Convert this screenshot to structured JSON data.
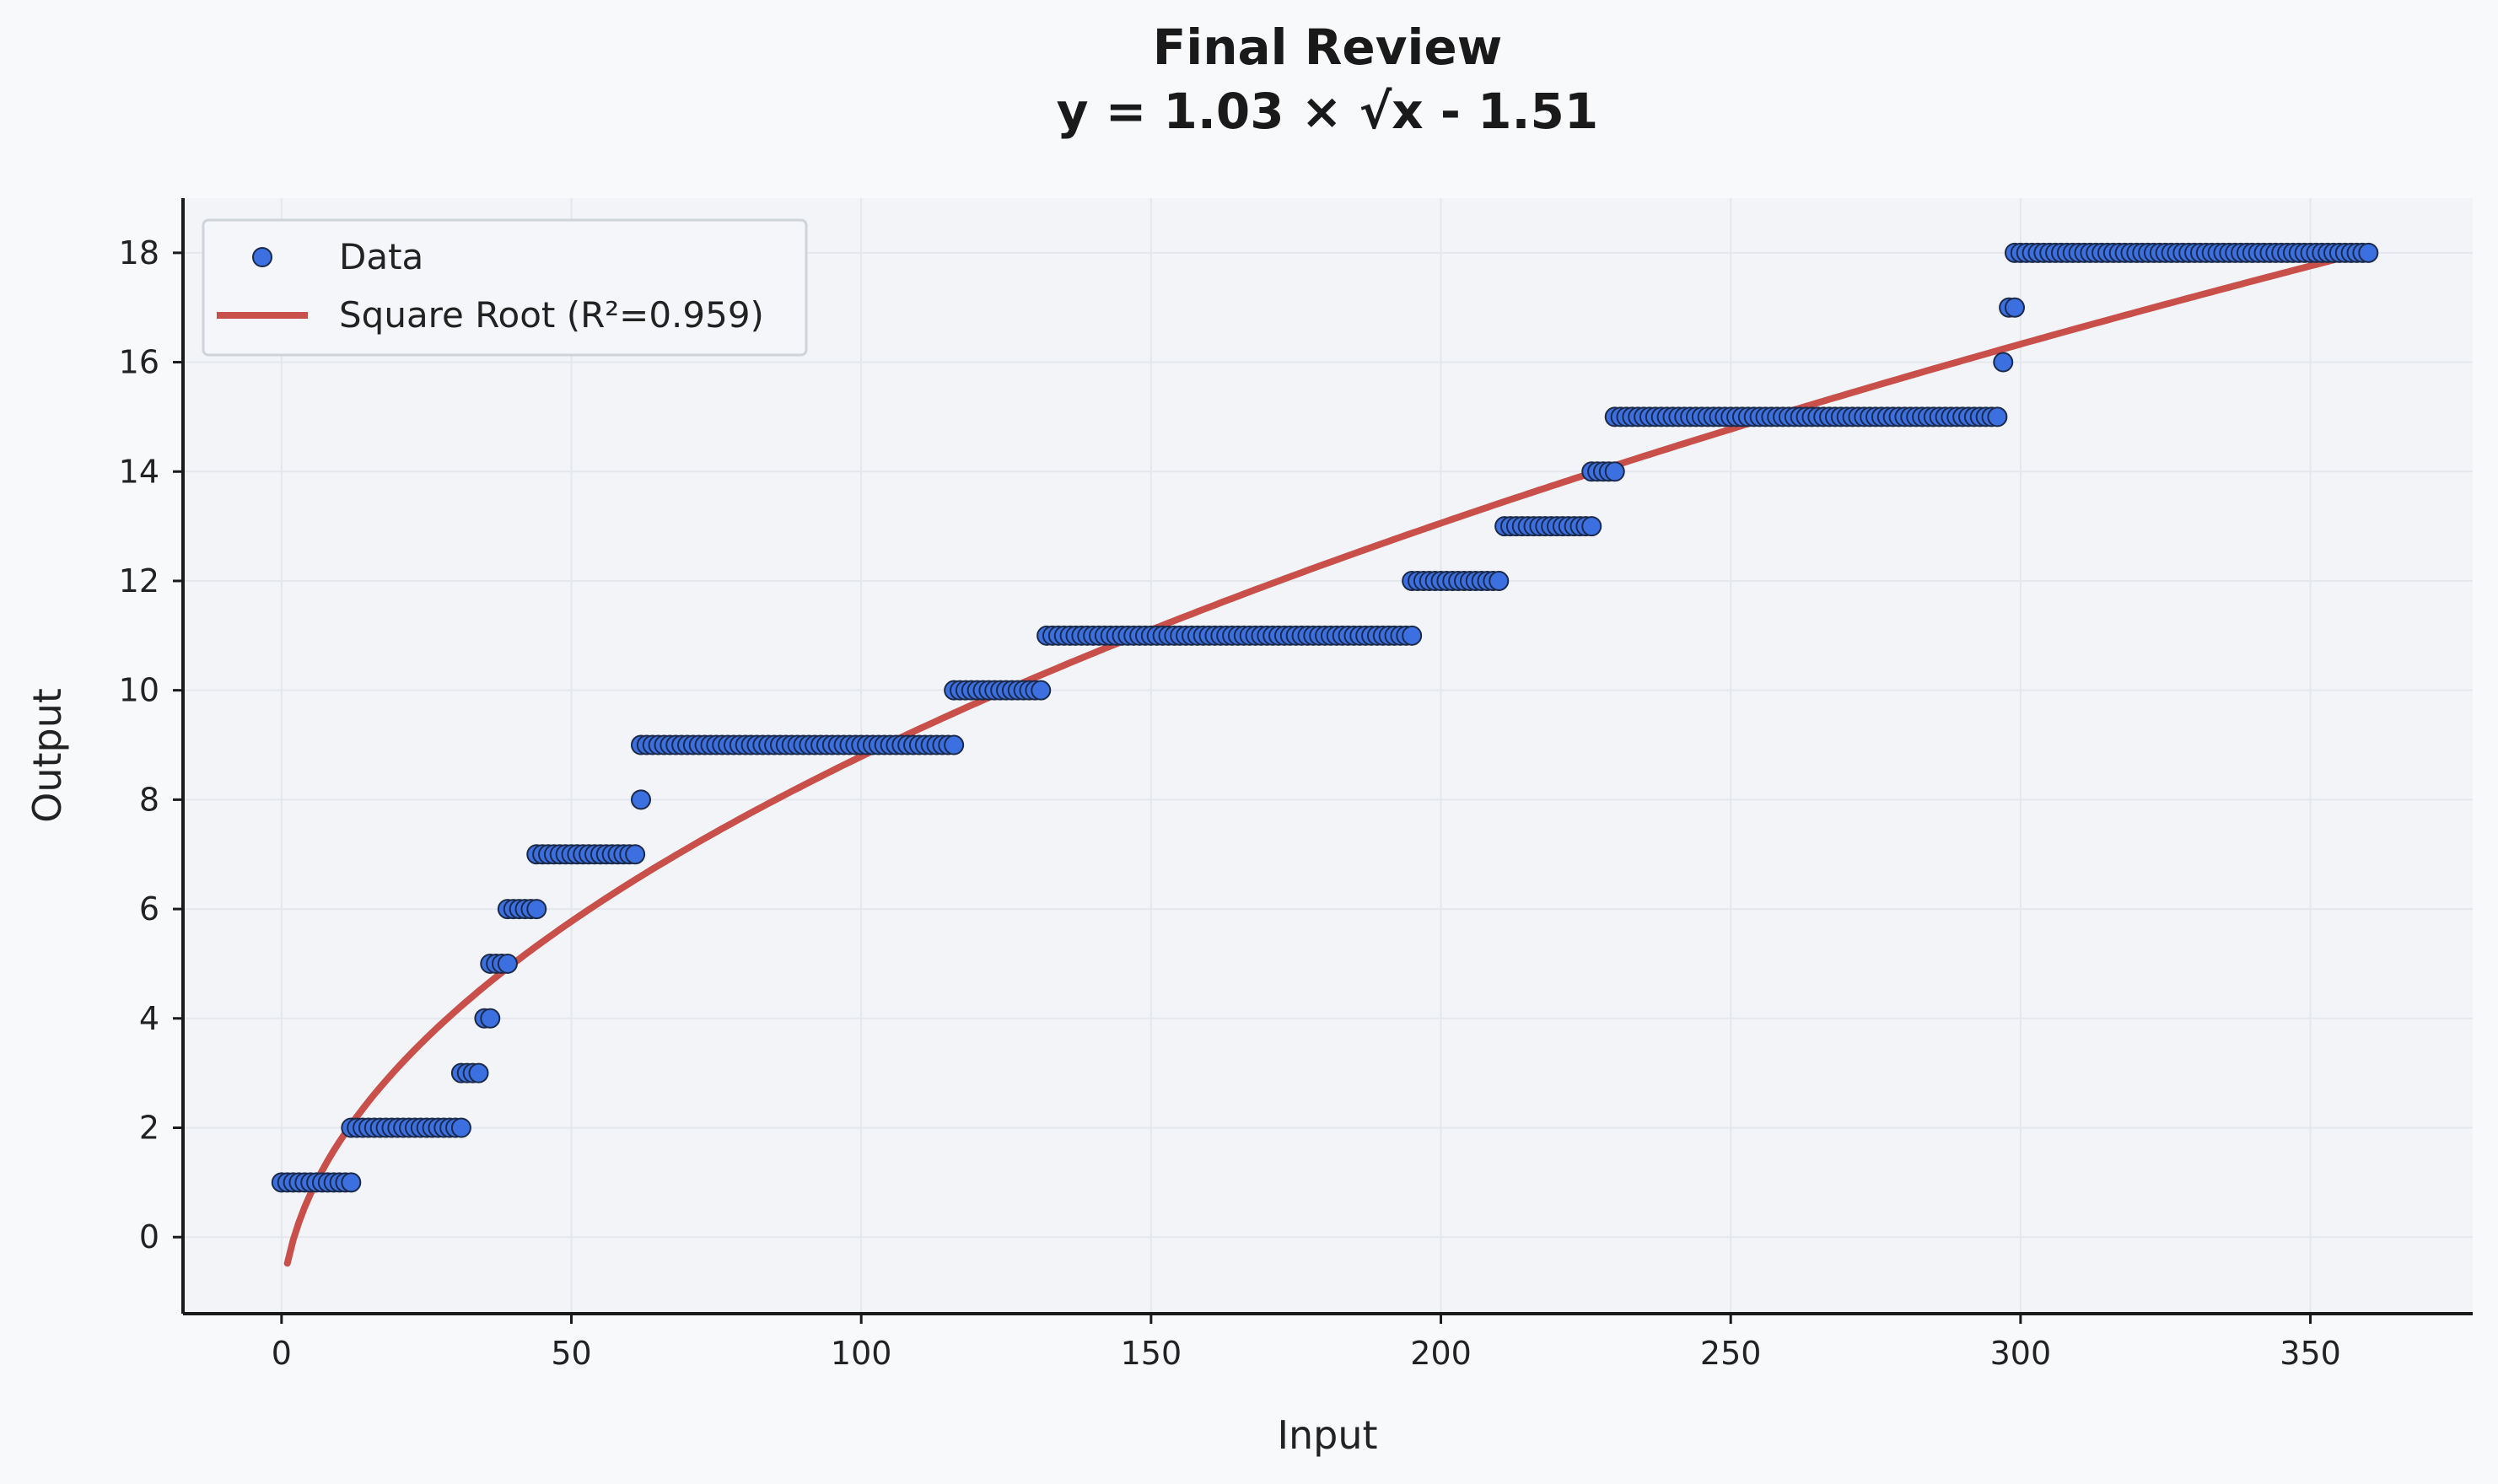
{
  "chart_data": {
    "type": "scatter",
    "title": "Final Review",
    "subtitle": "y = 1.03 × √x - 1.51",
    "xlabel": "Input",
    "ylabel": "Output",
    "xlim": [
      -17,
      378
    ],
    "ylim": [
      -1.4,
      19.0
    ],
    "x_ticks": [
      0,
      50,
      100,
      150,
      200,
      250,
      300,
      350
    ],
    "y_ticks": [
      0,
      2,
      4,
      6,
      8,
      10,
      12,
      14,
      16,
      18
    ],
    "grid": true,
    "legend_position": "upper-left",
    "colors": {
      "background": "#f7f9fb",
      "plot_background": "#f2f4f8",
      "points": "#3c6fe0",
      "point_edge": "#1b2a4a",
      "fit_line": "#c9504a",
      "grid": "#e4e7ec",
      "axis": "#1a1a1a"
    },
    "series": [
      {
        "name": "Data",
        "kind": "scatter",
        "segments": [
          {
            "x_start": 0,
            "x_end": 12,
            "y": 1
          },
          {
            "x_start": 12,
            "x_end": 31,
            "y": 2
          },
          {
            "x_start": 31,
            "x_end": 34,
            "y": 3
          },
          {
            "x_start": 35,
            "x_end": 36,
            "y": 4
          },
          {
            "x_start": 36,
            "x_end": 39,
            "y": 5
          },
          {
            "x_start": 39,
            "x_end": 44,
            "y": 6
          },
          {
            "x_start": 44,
            "x_end": 61,
            "y": 7
          },
          {
            "x_start": 62,
            "x_end": 62,
            "y": 8
          },
          {
            "x_start": 62,
            "x_end": 116,
            "y": 9
          },
          {
            "x_start": 116,
            "x_end": 131,
            "y": 10
          },
          {
            "x_start": 132,
            "x_end": 195,
            "y": 11
          },
          {
            "x_start": 195,
            "x_end": 210,
            "y": 12
          },
          {
            "x_start": 211,
            "x_end": 226,
            "y": 13
          },
          {
            "x_start": 226,
            "x_end": 230,
            "y": 14
          },
          {
            "x_start": 230,
            "x_end": 296,
            "y": 15
          },
          {
            "x_start": 297,
            "x_end": 297,
            "y": 16
          },
          {
            "x_start": 298,
            "x_end": 299,
            "y": 17
          },
          {
            "x_start": 299,
            "x_end": 360,
            "y": 18
          }
        ]
      },
      {
        "name": "Square Root (R²=0.959)",
        "kind": "line",
        "x_range": [
          1,
          360
        ],
        "coefficient": 1.03,
        "intercept": -1.51
      }
    ]
  }
}
